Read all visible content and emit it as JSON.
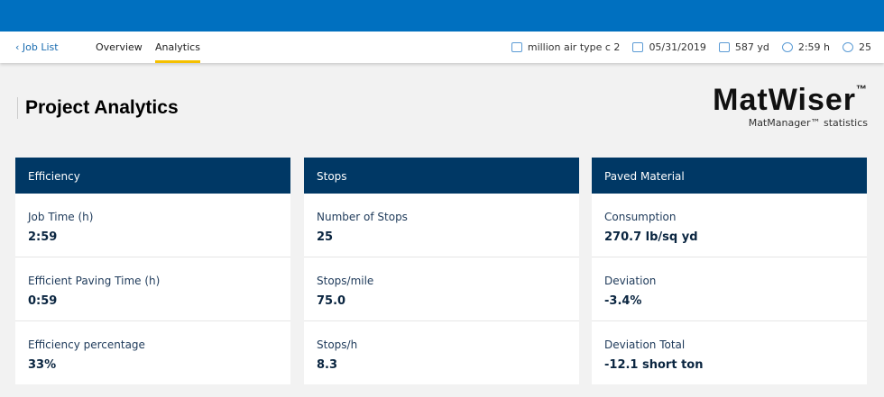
{
  "nav": {
    "back": "Job List",
    "tabs": [
      "Overview",
      "Analytics"
    ],
    "active_tab": "Analytics",
    "meta": [
      {
        "icon": "folder-icon",
        "text": "million air type c 2"
      },
      {
        "icon": "calendar-icon",
        "text": "05/31/2019"
      },
      {
        "icon": "distance-icon",
        "text": "587 yd"
      },
      {
        "icon": "clock-icon",
        "text": "2:59 h"
      },
      {
        "icon": "stop-icon",
        "text": "25"
      }
    ]
  },
  "page_title": "Project Analytics",
  "logo": {
    "name": "MatWiser",
    "tm": "™",
    "subtitle": "MatManager™ statistics"
  },
  "cards": [
    {
      "title": "Efficiency",
      "rows": [
        {
          "label": "Job Time (h)",
          "value": "2:59"
        },
        {
          "label": "Efficient Paving Time (h)",
          "value": "0:59"
        },
        {
          "label": "Efficiency percentage",
          "value": "33%"
        }
      ]
    },
    {
      "title": "Stops",
      "rows": [
        {
          "label": "Number of Stops",
          "value": "25"
        },
        {
          "label": "Stops/mile",
          "value": "75.0"
        },
        {
          "label": "Stops/h",
          "value": "8.3"
        }
      ]
    },
    {
      "title": "Paved Material",
      "rows": [
        {
          "label": "Consumption",
          "value": "270.7 lb/sq yd"
        },
        {
          "label": "Deviation",
          "value": "-3.4%"
        },
        {
          "label": "Deviation Total",
          "value": "-12.1 short ton"
        }
      ]
    }
  ],
  "colors": {
    "topbar": "#0070c0",
    "card_header": "#003865",
    "tab_underline": "#f5c000"
  }
}
